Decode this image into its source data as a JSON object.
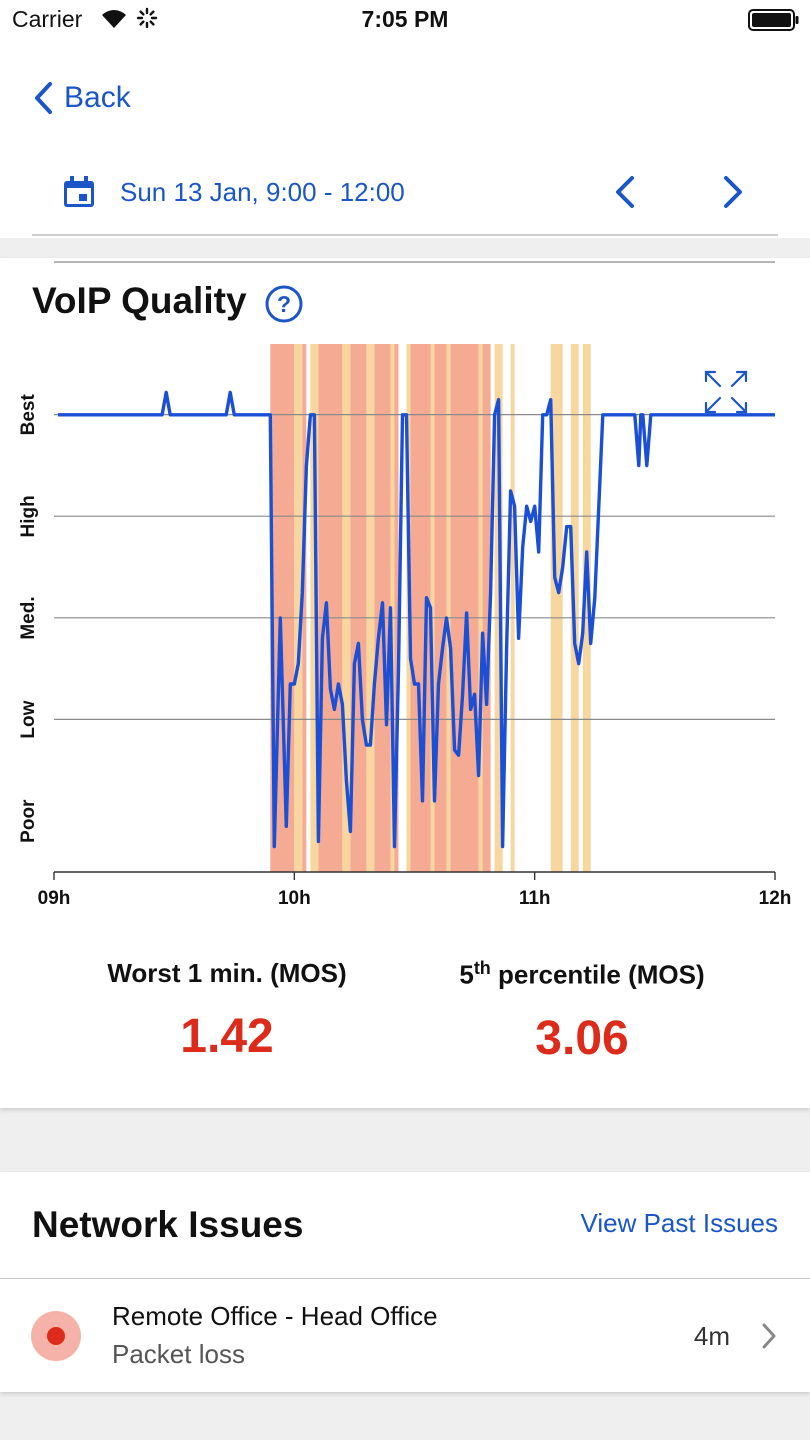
{
  "status_bar": {
    "carrier": "Carrier",
    "time": "7:05 PM"
  },
  "nav": {
    "back_label": "Back",
    "date_range": "Sun 13 Jan, 9:00 - 12:00"
  },
  "voip": {
    "title": "VoIP Quality",
    "metrics": [
      {
        "label_main": "Worst 1 min. (MOS)",
        "value": "1.42"
      },
      {
        "label_pre": "5",
        "label_sup": "th",
        "label_post": " percentile (MOS)",
        "value": "3.06"
      }
    ]
  },
  "chart_data": {
    "type": "line",
    "y_categories": [
      "Poor",
      "Low",
      "Med.",
      "High",
      "Best"
    ],
    "ylim": [
      0,
      5
    ],
    "x_ticks": [
      {
        "t": 0,
        "label": "09h"
      },
      {
        "t": 60,
        "label": "10h"
      },
      {
        "t": 120,
        "label": "11h"
      },
      {
        "t": 180,
        "label": "12h"
      }
    ],
    "xlim": [
      0,
      180
    ],
    "series": [
      {
        "color": "#1a4fd6",
        "points": [
          [
            1,
            4.5
          ],
          [
            27,
            4.5
          ],
          [
            28,
            4.72
          ],
          [
            29,
            4.5
          ],
          [
            43,
            4.5
          ],
          [
            44,
            4.72
          ],
          [
            45,
            4.5
          ],
          [
            54,
            4.5
          ],
          [
            55,
            0.25
          ],
          [
            56.5,
            2.5
          ],
          [
            58,
            0.45
          ],
          [
            59,
            1.85
          ],
          [
            60,
            1.85
          ],
          [
            61,
            2.05
          ],
          [
            62,
            2.75
          ],
          [
            63,
            4.0
          ],
          [
            64,
            4.5
          ],
          [
            65,
            4.5
          ],
          [
            66,
            0.3
          ],
          [
            67,
            2.3
          ],
          [
            68,
            2.65
          ],
          [
            69,
            1.8
          ],
          [
            70,
            1.6
          ],
          [
            71,
            1.85
          ],
          [
            72,
            1.65
          ],
          [
            73,
            0.9
          ],
          [
            74,
            0.4
          ],
          [
            75,
            2.05
          ],
          [
            76,
            2.25
          ],
          [
            77,
            1.5
          ],
          [
            78,
            1.25
          ],
          [
            79,
            1.25
          ],
          [
            80,
            1.85
          ],
          [
            81,
            2.3
          ],
          [
            82,
            2.65
          ],
          [
            83,
            1.45
          ],
          [
            84,
            2.6
          ],
          [
            85,
            0.25
          ],
          [
            86,
            2.0
          ],
          [
            87,
            4.5
          ],
          [
            88,
            4.5
          ],
          [
            89,
            2.1
          ],
          [
            90,
            1.85
          ],
          [
            91,
            1.85
          ],
          [
            92,
            0.7
          ],
          [
            93,
            2.7
          ],
          [
            94,
            2.6
          ],
          [
            95,
            0.7
          ],
          [
            96,
            1.85
          ],
          [
            97,
            2.2
          ],
          [
            98,
            2.5
          ],
          [
            99,
            2.2
          ],
          [
            100,
            1.2
          ],
          [
            101,
            1.15
          ],
          [
            102,
            1.75
          ],
          [
            103,
            2.55
          ],
          [
            104,
            1.6
          ],
          [
            105,
            1.75
          ],
          [
            106,
            0.95
          ],
          [
            107,
            2.35
          ],
          [
            108,
            1.65
          ],
          [
            109,
            2.75
          ],
          [
            110,
            4.5
          ],
          [
            111,
            4.65
          ],
          [
            112,
            0.25
          ],
          [
            113,
            2.2
          ],
          [
            114,
            3.75
          ],
          [
            115,
            3.6
          ],
          [
            116,
            2.3
          ],
          [
            117,
            3.2
          ],
          [
            118,
            3.6
          ],
          [
            119,
            3.45
          ],
          [
            120,
            3.6
          ],
          [
            121,
            3.15
          ],
          [
            122,
            4.5
          ],
          [
            123,
            4.5
          ],
          [
            124,
            4.65
          ],
          [
            125,
            2.9
          ],
          [
            126,
            2.75
          ],
          [
            127,
            3.0
          ],
          [
            128,
            3.4
          ],
          [
            129,
            3.4
          ],
          [
            130,
            2.25
          ],
          [
            131,
            2.05
          ],
          [
            132,
            2.35
          ],
          [
            133,
            3.15
          ],
          [
            134,
            2.25
          ],
          [
            135,
            2.7
          ],
          [
            136,
            3.6
          ],
          [
            137,
            4.5
          ],
          [
            145,
            4.5
          ],
          [
            146,
            4.0
          ],
          [
            146.5,
            4.5
          ],
          [
            147,
            4.5
          ],
          [
            148,
            4.0
          ],
          [
            149,
            4.5
          ],
          [
            180,
            4.5
          ]
        ]
      }
    ],
    "bands": [
      {
        "t0": 54,
        "t1": 60,
        "level": "poor"
      },
      {
        "t0": 60,
        "t1": 62,
        "level": "fair"
      },
      {
        "t0": 62,
        "t1": 63,
        "level": "poor"
      },
      {
        "t0": 64,
        "t1": 66,
        "level": "fair"
      },
      {
        "t0": 66,
        "t1": 72,
        "level": "poor"
      },
      {
        "t0": 72,
        "t1": 74,
        "level": "fair"
      },
      {
        "t0": 74,
        "t1": 78,
        "level": "poor"
      },
      {
        "t0": 78,
        "t1": 80,
        "level": "fair"
      },
      {
        "t0": 80,
        "t1": 84,
        "level": "poor"
      },
      {
        "t0": 84,
        "t1": 85,
        "level": "fair"
      },
      {
        "t0": 85,
        "t1": 86,
        "level": "poor"
      },
      {
        "t0": 88,
        "t1": 89,
        "level": "fair"
      },
      {
        "t0": 89,
        "t1": 94,
        "level": "poor"
      },
      {
        "t0": 94,
        "t1": 95,
        "level": "fair"
      },
      {
        "t0": 95,
        "t1": 98,
        "level": "poor"
      },
      {
        "t0": 98,
        "t1": 99,
        "level": "fair"
      },
      {
        "t0": 99,
        "t1": 106,
        "level": "poor"
      },
      {
        "t0": 106,
        "t1": 107,
        "level": "fair"
      },
      {
        "t0": 107,
        "t1": 109,
        "level": "poor"
      },
      {
        "t0": 110,
        "t1": 112,
        "level": "fair"
      },
      {
        "t0": 114,
        "t1": 115,
        "level": "fair"
      },
      {
        "t0": 124,
        "t1": 127,
        "level": "fair"
      },
      {
        "t0": 129,
        "t1": 131,
        "level": "fair"
      },
      {
        "t0": 132,
        "t1": 134,
        "level": "fair"
      }
    ],
    "band_colors": {
      "poor": "#f5aa94",
      "fair": "#f7d6a0"
    },
    "grid": true
  },
  "network_issues": {
    "title": "Network Issues",
    "view_past": "View Past Issues",
    "items": [
      {
        "title": "Remote Office - Head Office",
        "subtitle": "Packet loss",
        "age": "4m",
        "severity_color": "#dc2b1a"
      }
    ]
  },
  "colors": {
    "accent": "#1a56c8",
    "alert": "#dc2b1a"
  }
}
